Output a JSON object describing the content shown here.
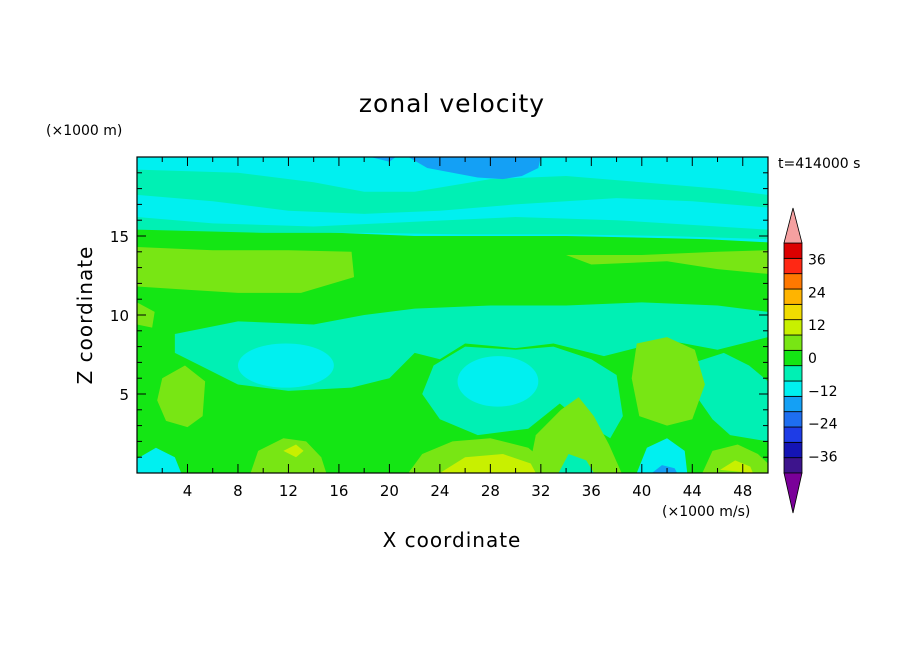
{
  "chart_data": {
    "type": "heatmap",
    "title": "zonal velocity",
    "xlabel": "X coordinate",
    "ylabel": "Z coordinate",
    "x_units": "(×1000 m/s)",
    "y_units": "(×1000 m)",
    "time_label": "t=414000 s",
    "xlim": [
      0,
      50
    ],
    "ylim": [
      0,
      20
    ],
    "x_ticks": [
      4,
      8,
      12,
      16,
      20,
      24,
      28,
      32,
      36,
      40,
      44,
      48
    ],
    "y_ticks": [
      5,
      10,
      15
    ],
    "colorbar": {
      "levels": [
        -42,
        -36,
        -30,
        -24,
        -18,
        -12,
        -6,
        0,
        6,
        12,
        18,
        24,
        30,
        36,
        42
      ],
      "tick_labels": [
        "36",
        "24",
        "12",
        "0",
        "−12",
        "−24",
        "−36"
      ],
      "tick_values": [
        36,
        24,
        12,
        0,
        -12,
        -24,
        -36
      ],
      "colors": [
        "#7a0099",
        "#3d148c",
        "#1414b4",
        "#1e3ce6",
        "#1e6ef0",
        "#14a0f5",
        "#00f0f0",
        "#00f0b4",
        "#14e614",
        "#78e614",
        "#c8f000",
        "#f0dc00",
        "#ffb400",
        "#ff7800",
        "#ff2814",
        "#dc0000",
        "#f5a0a0"
      ]
    },
    "colors": {
      "c_m24": "#1e6ef0",
      "c_m12": "#14a0f5",
      "c_m6": "#00f0f0",
      "c_0": "#00f0b4",
      "c_6": "#14e614",
      "c_12": "#78e614",
      "c_18": "#c8f000",
      "c_24": "#f0dc00"
    }
  }
}
